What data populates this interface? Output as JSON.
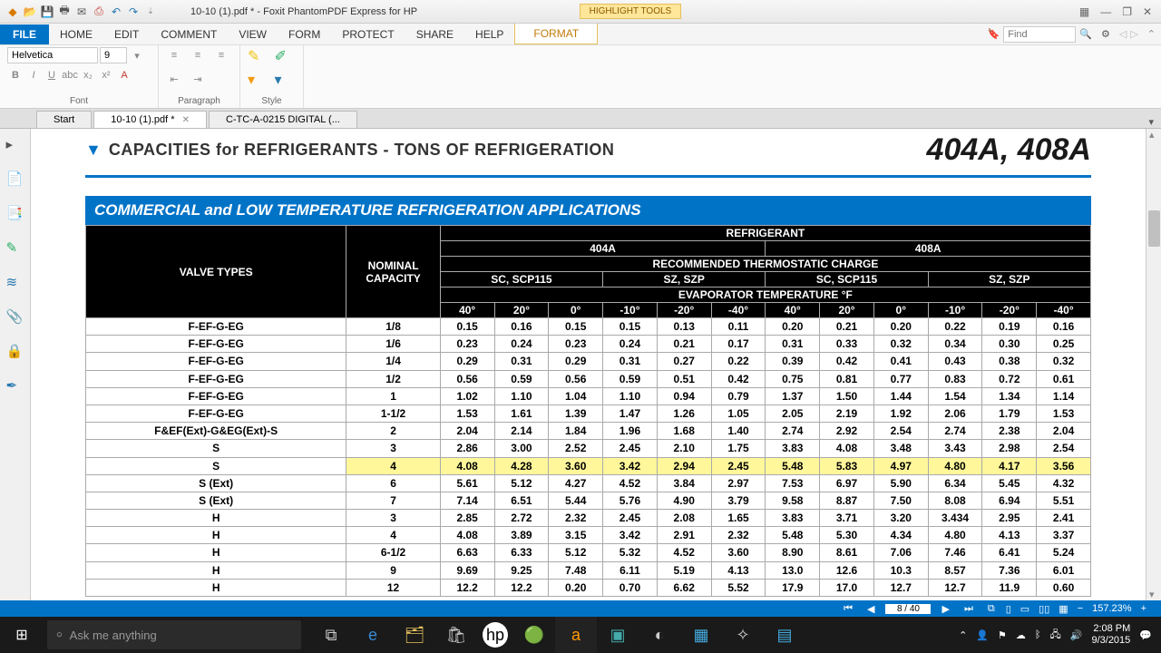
{
  "app": {
    "title": "10-10 (1).pdf * - Foxit PhantomPDF Express for HP",
    "highlight_tools": "HIGHLIGHT TOOLS"
  },
  "menu": {
    "file": "FILE",
    "home": "HOME",
    "edit": "EDIT",
    "comment": "COMMENT",
    "view": "VIEW",
    "form": "FORM",
    "protect": "PROTECT",
    "share": "SHARE",
    "help": "HELP",
    "format": "FORMAT"
  },
  "find": {
    "placeholder": "Find"
  },
  "ribbon": {
    "font_name": "Helvetica",
    "font_size": "9",
    "font_label": "Font",
    "para_label": "Paragraph",
    "style_label": "Style"
  },
  "tabs": {
    "start": "Start",
    "doc1": "10-10 (1).pdf *",
    "doc2": "C-TC-A-0215 DIGITAL (..."
  },
  "doc": {
    "heading": "CAPACITIES for REFRIGERANTS - TONS OF REFRIGERATION",
    "right": "404A, 408A",
    "bluebar": "COMMERCIAL and LOW TEMPERATURE REFRIGERATION APPLICATIONS",
    "table": {
      "valve_types": "VALVE TYPES",
      "nominal": "NOMINAL CAPACITY",
      "refrigerant": "REFRIGERANT",
      "r404": "404A",
      "r408": "408A",
      "recommended": "RECOMMENDED THERMOSTATIC CHARGE",
      "sc": "SC, SCP115",
      "sz": "SZ, SZP",
      "evap": "EVAPORATOR TEMPERATURE °F",
      "temps": [
        "40°",
        "20°",
        "0°",
        "-10°",
        "-20°",
        "-40°",
        "40°",
        "20°",
        "0°",
        "-10°",
        "-20°",
        "-40°"
      ],
      "rows": [
        {
          "v": "F-EF-G-EG",
          "n": "1/8",
          "d": [
            "0.15",
            "0.16",
            "0.15",
            "0.15",
            "0.13",
            "0.11",
            "0.20",
            "0.21",
            "0.20",
            "0.22",
            "0.19",
            "0.16"
          ]
        },
        {
          "v": "F-EF-G-EG",
          "n": "1/6",
          "d": [
            "0.23",
            "0.24",
            "0.23",
            "0.24",
            "0.21",
            "0.17",
            "0.31",
            "0.33",
            "0.32",
            "0.34",
            "0.30",
            "0.25"
          ]
        },
        {
          "v": "F-EF-G-EG",
          "n": "1/4",
          "d": [
            "0.29",
            "0.31",
            "0.29",
            "0.31",
            "0.27",
            "0.22",
            "0.39",
            "0.42",
            "0.41",
            "0.43",
            "0.38",
            "0.32"
          ]
        },
        {
          "v": "F-EF-G-EG",
          "n": "1/2",
          "d": [
            "0.56",
            "0.59",
            "0.56",
            "0.59",
            "0.51",
            "0.42",
            "0.75",
            "0.81",
            "0.77",
            "0.83",
            "0.72",
            "0.61"
          ]
        },
        {
          "v": "F-EF-G-EG",
          "n": "1",
          "d": [
            "1.02",
            "1.10",
            "1.04",
            "1.10",
            "0.94",
            "0.79",
            "1.37",
            "1.50",
            "1.44",
            "1.54",
            "1.34",
            "1.14"
          ]
        },
        {
          "v": "F-EF-G-EG",
          "n": "1-1/2",
          "d": [
            "1.53",
            "1.61",
            "1.39",
            "1.47",
            "1.26",
            "1.05",
            "2.05",
            "2.19",
            "1.92",
            "2.06",
            "1.79",
            "1.53"
          ]
        },
        {
          "v": "F&EF(Ext)-G&EG(Ext)-S",
          "n": "2",
          "d": [
            "2.04",
            "2.14",
            "1.84",
            "1.96",
            "1.68",
            "1.40",
            "2.74",
            "2.92",
            "2.54",
            "2.74",
            "2.38",
            "2.04"
          ]
        },
        {
          "v": "S",
          "n": "3",
          "d": [
            "2.86",
            "3.00",
            "2.52",
            "2.45",
            "2.10",
            "1.75",
            "3.83",
            "4.08",
            "3.48",
            "3.43",
            "2.98",
            "2.54"
          ]
        },
        {
          "v": "S",
          "n": "4",
          "hl": true,
          "d": [
            "4.08",
            "4.28",
            "3.60",
            "3.42",
            "2.94",
            "2.45",
            "5.48",
            "5.83",
            "4.97",
            "4.80",
            "4.17",
            "3.56"
          ]
        },
        {
          "v": "S (Ext)",
          "n": "6",
          "d": [
            "5.61",
            "5.12",
            "4.27",
            "4.52",
            "3.84",
            "2.97",
            "7.53",
            "6.97",
            "5.90",
            "6.34",
            "5.45",
            "4.32"
          ]
        },
        {
          "v": "S (Ext)",
          "n": "7",
          "d": [
            "7.14",
            "6.51",
            "5.44",
            "5.76",
            "4.90",
            "3.79",
            "9.58",
            "8.87",
            "7.50",
            "8.08",
            "6.94",
            "5.51"
          ]
        },
        {
          "v": "H",
          "n": "3",
          "d": [
            "2.85",
            "2.72",
            "2.32",
            "2.45",
            "2.08",
            "1.65",
            "3.83",
            "3.71",
            "3.20",
            "3.434",
            "2.95",
            "2.41"
          ]
        },
        {
          "v": "H",
          "n": "4",
          "d": [
            "4.08",
            "3.89",
            "3.15",
            "3.42",
            "2.91",
            "2.32",
            "5.48",
            "5.30",
            "4.34",
            "4.80",
            "4.13",
            "3.37"
          ]
        },
        {
          "v": "H",
          "n": "6-1/2",
          "d": [
            "6.63",
            "6.33",
            "5.12",
            "5.32",
            "4.52",
            "3.60",
            "8.90",
            "8.61",
            "7.06",
            "7.46",
            "6.41",
            "5.24"
          ]
        },
        {
          "v": "H",
          "n": "9",
          "d": [
            "9.69",
            "9.25",
            "7.48",
            "6.11",
            "5.19",
            "4.13",
            "13.0",
            "12.6",
            "10.3",
            "8.57",
            "7.36",
            "6.01"
          ]
        },
        {
          "v": "H",
          "n": "12",
          "d": [
            "12.2",
            "12.2",
            "0.20",
            "0.70",
            "6.62",
            "5.52",
            "17.9",
            "17.0",
            "12.7",
            "12.7",
            "11.9",
            "0.60"
          ]
        }
      ]
    }
  },
  "nav": {
    "page": "8 / 40",
    "zoom": "157.23%"
  },
  "taskbar": {
    "search": "Ask me anything",
    "time": "2:08 PM",
    "date": "9/3/2015"
  }
}
